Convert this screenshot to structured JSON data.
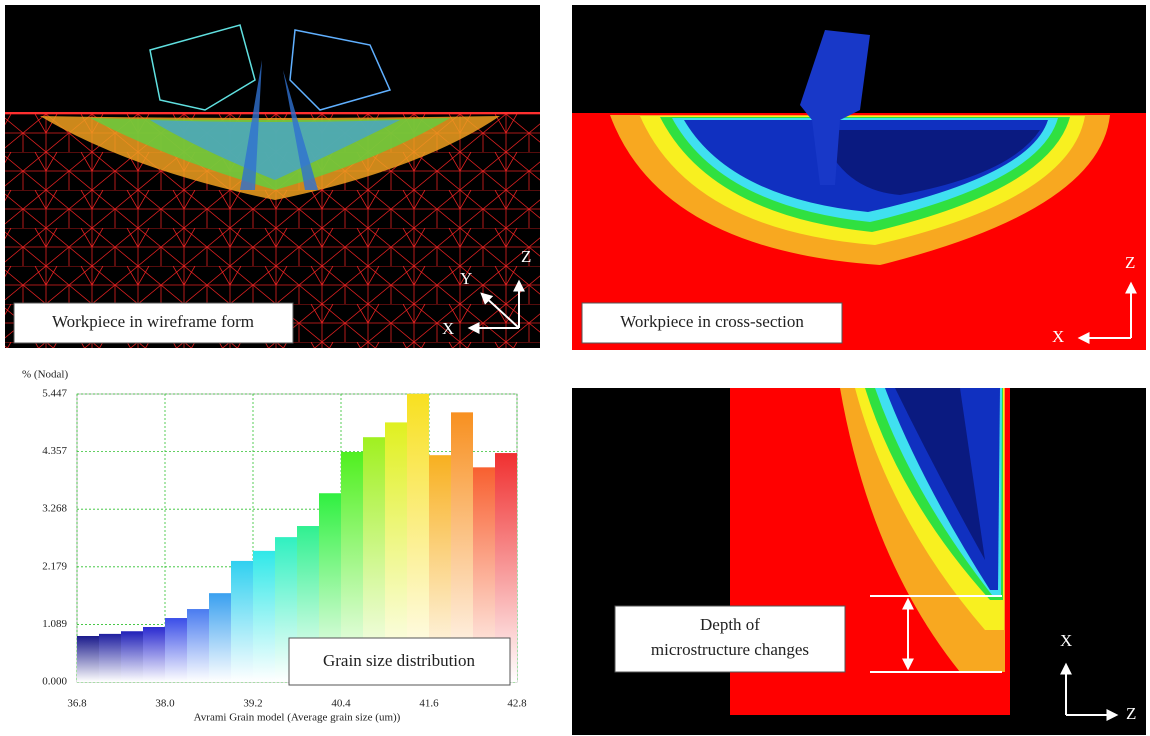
{
  "chart_data": {
    "type": "histogram",
    "ylabel": "% (Nodal)",
    "xlabel": "Avrami Grain model (Average grain size (um))",
    "annotation": "Grain size distribution",
    "bins": [
      36.8,
      37.1,
      37.4,
      37.7,
      38.0,
      38.3,
      38.6,
      38.9,
      39.2,
      39.5,
      39.8,
      40.1,
      40.4,
      40.7,
      41.0,
      41.3,
      41.6,
      41.9,
      42.2,
      42.5,
      42.8
    ],
    "values": [
      0.87,
      0.91,
      0.96,
      1.04,
      1.21,
      1.38,
      1.68,
      2.29,
      2.48,
      2.74,
      2.95,
      3.57,
      4.35,
      4.63,
      4.91,
      5.45,
      4.29,
      5.1,
      4.06,
      4.33
    ],
    "colors": [
      "#1a1a8c",
      "#1f1fa0",
      "#2020b8",
      "#2a2ad0",
      "#3a4ee8",
      "#4a7cf0",
      "#3aa0f0",
      "#30d0f0",
      "#30e8e8",
      "#30f0c0",
      "#30f090",
      "#30f040",
      "#50f020",
      "#a0f020",
      "#e0f020",
      "#f8e020",
      "#f8b020",
      "#f89020",
      "#f86030",
      "#f03030"
    ],
    "xlim": [
      36.8,
      42.8
    ],
    "xticks": [
      36.8,
      {
        "value": 38,
        "label": "38.0"
      },
      39.2,
      40.4,
      41.6,
      42.8
    ],
    "ylim": [
      0,
      5.447
    ],
    "yticks": [
      {
        "value": 0,
        "label": "0.000"
      },
      1.089,
      2.179,
      3.268,
      4.357,
      5.447
    ],
    "grid": true
  },
  "panels": [
    {
      "label": "Workpiece in wireframe form",
      "axes": [
        "Z",
        "Y",
        "X"
      ]
    },
    {
      "label": "Workpiece in cross-section",
      "axes": [
        "Z",
        "X"
      ]
    },
    {
      "label": [
        "Depth of",
        "microstructure changes"
      ],
      "axes": [
        "X",
        "Z"
      ]
    }
  ]
}
